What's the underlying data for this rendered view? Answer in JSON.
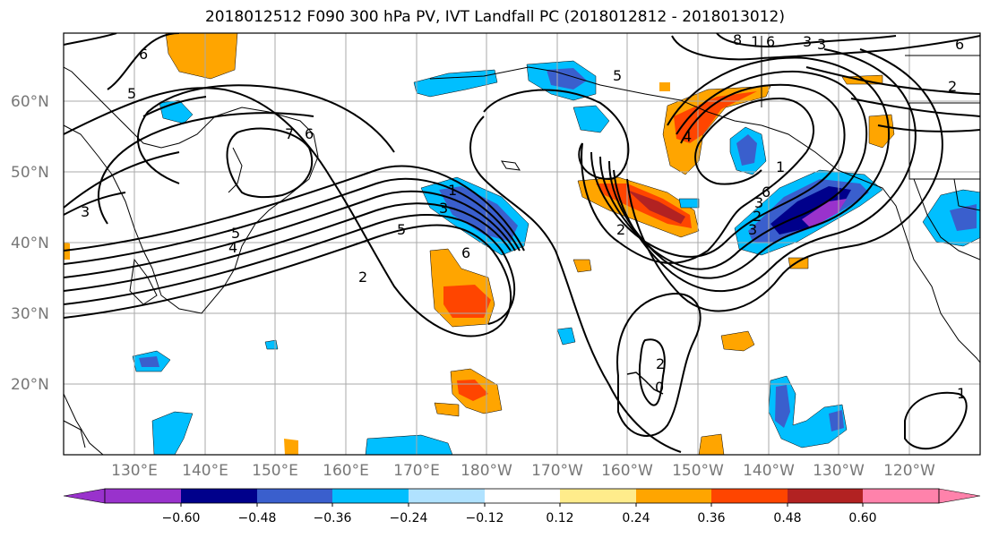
{
  "map": {
    "title": "2018012512 F090 300 hPa PV, IVT Landfall PC (2018012812 - 2018013012)",
    "lat_labels": [
      "60°N",
      "50°N",
      "40°N",
      "30°N",
      "20°N"
    ],
    "lon_labels": [
      "130°E",
      "140°E",
      "150°E",
      "160°E",
      "170°E",
      "180°W",
      "170°W",
      "160°W",
      "150°W",
      "140°W",
      "130°W",
      "120°W"
    ],
    "contour_labels": [
      "6",
      "5",
      "7",
      "6",
      "3",
      "2",
      "1",
      "5",
      "4",
      "3",
      "2",
      "6",
      "5",
      "3",
      "2",
      "3",
      "4",
      "2",
      "1",
      "6",
      "3",
      "8",
      "6",
      "1",
      "3",
      "5",
      "6",
      "2",
      "0",
      "1"
    ]
  },
  "colorbar": {
    "tick_labels": [
      "−0.60",
      "−0.48",
      "−0.36",
      "−0.24",
      "−0.12",
      "0.12",
      "0.24",
      "0.36",
      "0.48",
      "0.60"
    ],
    "colors": [
      "#9932CC",
      "#00008B",
      "#3A5FCD",
      "#00BFFF",
      "#B0E2FF",
      "#FFFFFF",
      "#FFEC8B",
      "#FFA500",
      "#FF4500",
      "#B22222",
      "#FF82AB"
    ]
  }
}
